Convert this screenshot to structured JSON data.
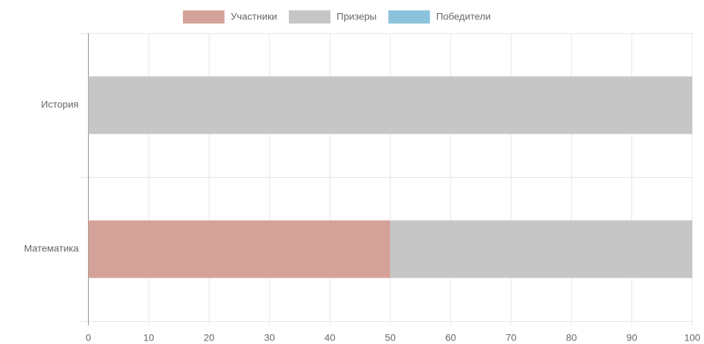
{
  "chart_data": {
    "type": "bar",
    "orientation": "horizontal",
    "stacked": true,
    "categories": [
      "История",
      "Математика"
    ],
    "series": [
      {
        "name": "Участники",
        "color": "#d5a29a",
        "values": [
          0,
          50
        ]
      },
      {
        "name": "Призеры",
        "color": "#c6c6c6",
        "values": [
          100,
          50
        ]
      },
      {
        "name": "Победители",
        "color": "#8bc3dc",
        "values": [
          0,
          0
        ]
      }
    ],
    "xlim": [
      0,
      100
    ],
    "xticks": [
      0,
      10,
      20,
      30,
      40,
      50,
      60,
      70,
      80,
      90,
      100
    ],
    "grid": true,
    "legend": "top"
  }
}
